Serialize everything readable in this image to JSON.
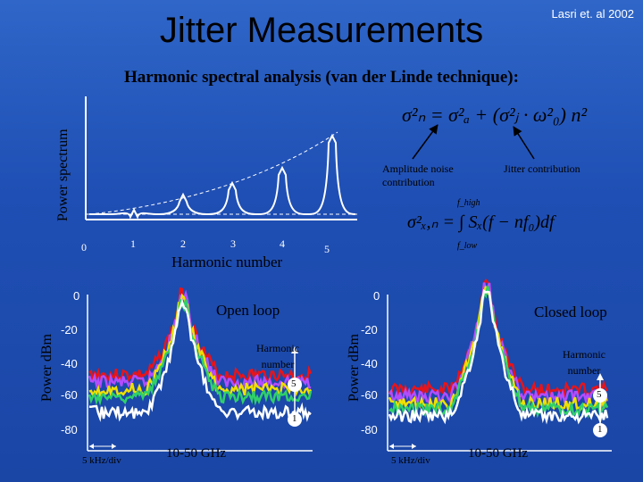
{
  "slide": {
    "title": "Jitter Measurements",
    "author": "Lasri et. al 2002",
    "subtitle": "Harmonic spectral analysis (van der Linde technique):"
  },
  "top_plot": {
    "ylabel": "Power spectrum",
    "xlabel": "Harmonic number",
    "ticks": [
      "0",
      "1",
      "2",
      "3",
      "4",
      "5"
    ],
    "equation1": "σ²ₙ = σ²ₐ + (σ²ⱼ · ω²₀) n²",
    "equation2": "σ²ₓ,ₙ = ∫ Sₓ(f − nf₀)df",
    "integral_upper": "f_high",
    "integral_lower": "f_low",
    "amp_label_1": "Amplitude noise",
    "amp_label_2": "contribution",
    "jitter_label": "Jitter contribution"
  },
  "left_spectrum": {
    "title": "Open loop",
    "ylabel": "Power dBm",
    "yticks": [
      "0",
      "-20",
      "-40",
      "-60",
      "-80"
    ],
    "harmonic_label_1": "Harmonic",
    "harmonic_label_2": "number",
    "marker_high": "5",
    "marker_low": "1",
    "span_label": "5 kHz/div",
    "freq_label": "10-50 GHz"
  },
  "right_spectrum": {
    "title": "Closed loop",
    "ylabel": "Power dBm",
    "yticks": [
      "0",
      "-20",
      "-40",
      "-60",
      "-80"
    ],
    "harmonic_label_1": "Harmonic",
    "harmonic_label_2": "number",
    "marker_high": "5",
    "marker_low": "1",
    "span_label": "5 kHz/div",
    "freq_label": "10-50 GHz"
  },
  "colors": {
    "red": "#e8141a",
    "purple": "#b24dff",
    "yellow": "#f0e000",
    "green": "#2fd06a",
    "white": "#ffffff"
  }
}
